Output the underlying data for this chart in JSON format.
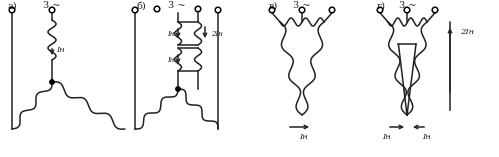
{
  "bg_color": "#ffffff",
  "line_color": "#222222",
  "label_a": "a)",
  "label_b": "б)",
  "label_v": "в)",
  "label_g": "г)",
  "label_3sim": "3 ~",
  "label_Ih": "Iн",
  "label_2Ih": "2Iн",
  "fig_width": 4.99,
  "fig_height": 1.57,
  "dpi": 100
}
